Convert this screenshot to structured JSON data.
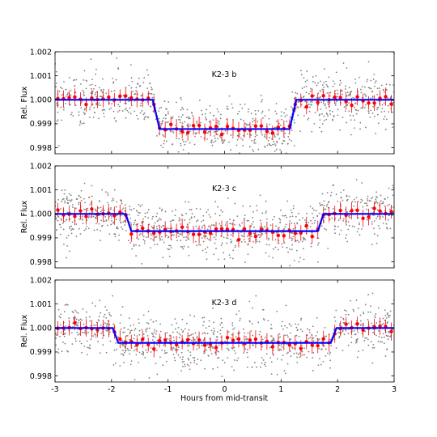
{
  "chart_data": {
    "type": "scatter",
    "xlabel": "Hours from mid-transit",
    "ylabel": "Rel. Flux",
    "xlim": [
      -3,
      3
    ],
    "ylim": [
      0.99975,
      1.0002
    ],
    "ylim_note": "",
    "x_ticks": [
      -3,
      -2,
      -1,
      0,
      1,
      2,
      3
    ],
    "y_ticks": [
      "0.998",
      "0.999",
      "1.000",
      "1.001",
      "1.002"
    ],
    "colors": {
      "raw_points": "#808080",
      "binned_points": "#ff0000",
      "model_line": "#0000ff"
    },
    "panels": [
      {
        "label": "K2-3 b",
        "ylim": [
          0.99975,
          1.0002
        ],
        "model": {
          "depth": 0.00122,
          "t14_half": 1.27,
          "ingress": 0.12
        },
        "raw_scatter": 0.00055,
        "binned_scatter": 0.00012,
        "n_raw": 900,
        "n_binned": 60
      },
      {
        "label": "K2-3 c",
        "ylim": [
          0.99975,
          1.0002
        ],
        "model": {
          "depth": 0.00072,
          "t14_half": 1.75,
          "ingress": 0.1
        },
        "raw_scatter": 0.00055,
        "binned_scatter": 0.00012,
        "n_raw": 900,
        "n_binned": 60
      },
      {
        "label": "K2-3 d",
        "ylim": [
          0.99975,
          1.0002
        ],
        "model": {
          "depth": 0.00062,
          "t14_half": 1.98,
          "ingress": 0.1
        },
        "raw_scatter": 0.00055,
        "binned_scatter": 0.00012,
        "n_raw": 900,
        "n_binned": 60
      }
    ]
  }
}
